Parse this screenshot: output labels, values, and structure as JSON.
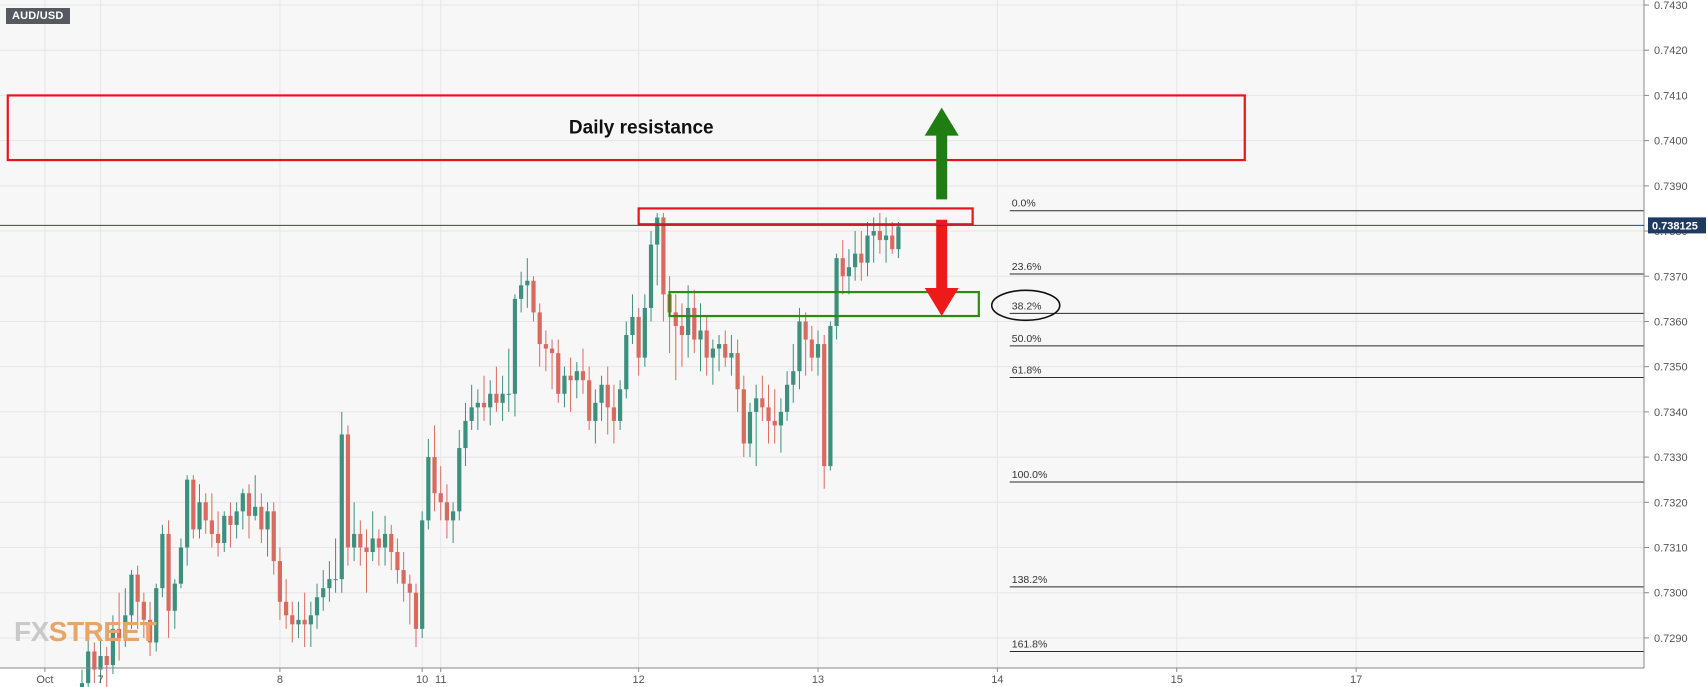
{
  "symbol": "AUD/USD",
  "watermark": {
    "part1": "FX",
    "part2": "STREET"
  },
  "colors": {
    "up": "#3d8f7e",
    "down": "#d96a5f",
    "zone_red": "#e8141b",
    "zone_green": "#2f8a12",
    "arrow_up": "#1f7d13",
    "arrow_down": "#ee1a1a",
    "price_badge": "#1f3a60",
    "grid": "#e6e6e6",
    "background": "#f7f7f7"
  },
  "chart_data": {
    "type": "candlestick",
    "title": "AUD/USD",
    "ylim": [
      0.7286,
      0.743
    ],
    "grid": true,
    "y_ticks": [
      "0.7290",
      "0.7300",
      "0.7310",
      "0.7320",
      "0.7330",
      "0.7340",
      "0.7350",
      "0.7360",
      "0.7370",
      "0.7380",
      "0.7390",
      "0.7400",
      "0.7410",
      "0.7420",
      "0.7430"
    ],
    "x_ticks": [
      {
        "label": "Oct",
        "i": -6
      },
      {
        "label": "7",
        "i": 3
      },
      {
        "label": "8",
        "i": 32
      },
      {
        "label": "10",
        "i": 55
      },
      {
        "label": "11",
        "i": 58
      },
      {
        "label": "12",
        "i": 90
      },
      {
        "label": "13",
        "i": 119
      },
      {
        "label": "14",
        "i": 148
      },
      {
        "label": "15",
        "i": 177
      },
      {
        "label": "17",
        "i": 206
      }
    ],
    "current_price": {
      "label": "0.738125",
      "value": 0.738125
    },
    "candles": [
      [
        0.7278,
        0.7283,
        0.7272,
        0.728
      ],
      [
        0.728,
        0.7292,
        0.7278,
        0.7287
      ],
      [
        0.7287,
        0.7289,
        0.728,
        0.7283
      ],
      [
        0.7283,
        0.729,
        0.728,
        0.7286
      ],
      [
        0.7286,
        0.7288,
        0.7279,
        0.7284
      ],
      [
        0.7284,
        0.7295,
        0.7282,
        0.7292
      ],
      [
        0.7292,
        0.73,
        0.7285,
        0.729
      ],
      [
        0.729,
        0.7301,
        0.7288,
        0.7295
      ],
      [
        0.7295,
        0.7305,
        0.7292,
        0.7304
      ],
      [
        0.7304,
        0.7306,
        0.7292,
        0.7298
      ],
      [
        0.7298,
        0.73,
        0.729,
        0.7294
      ],
      [
        0.7294,
        0.7298,
        0.7286,
        0.7289
      ],
      [
        0.7289,
        0.7302,
        0.7287,
        0.7301
      ],
      [
        0.7301,
        0.7315,
        0.7299,
        0.7313
      ],
      [
        0.7313,
        0.7316,
        0.729,
        0.7296
      ],
      [
        0.7296,
        0.7303,
        0.7292,
        0.7302
      ],
      [
        0.7302,
        0.7312,
        0.7301,
        0.731
      ],
      [
        0.731,
        0.7326,
        0.7306,
        0.7325
      ],
      [
        0.7325,
        0.7326,
        0.7312,
        0.7314
      ],
      [
        0.7314,
        0.7324,
        0.7312,
        0.732
      ],
      [
        0.732,
        0.7322,
        0.7313,
        0.7316
      ],
      [
        0.7316,
        0.7322,
        0.731,
        0.7313
      ],
      [
        0.7313,
        0.7318,
        0.7308,
        0.7311
      ],
      [
        0.7311,
        0.7318,
        0.7309,
        0.7317
      ],
      [
        0.7317,
        0.732,
        0.731,
        0.7315
      ],
      [
        0.7315,
        0.732,
        0.7312,
        0.7318
      ],
      [
        0.7318,
        0.7323,
        0.7314,
        0.7322
      ],
      [
        0.7322,
        0.7324,
        0.7312,
        0.7317
      ],
      [
        0.7317,
        0.7326,
        0.7316,
        0.7319
      ],
      [
        0.7319,
        0.7322,
        0.7311,
        0.7314
      ],
      [
        0.7314,
        0.732,
        0.7308,
        0.7318
      ],
      [
        0.7318,
        0.732,
        0.7304,
        0.7307
      ],
      [
        0.7307,
        0.731,
        0.7294,
        0.7298
      ],
      [
        0.7298,
        0.7303,
        0.7292,
        0.7295
      ],
      [
        0.7295,
        0.7298,
        0.7289,
        0.7293
      ],
      [
        0.7293,
        0.7298,
        0.729,
        0.7294
      ],
      [
        0.7294,
        0.73,
        0.7288,
        0.7293
      ],
      [
        0.7293,
        0.7298,
        0.7288,
        0.7295
      ],
      [
        0.7295,
        0.7302,
        0.7292,
        0.7299
      ],
      [
        0.7299,
        0.7305,
        0.7296,
        0.7301
      ],
      [
        0.7301,
        0.7307,
        0.7298,
        0.7303
      ],
      [
        0.7303,
        0.7312,
        0.73,
        0.7303
      ],
      [
        0.7303,
        0.734,
        0.73,
        0.7335
      ],
      [
        0.7335,
        0.7337,
        0.7306,
        0.731
      ],
      [
        0.731,
        0.732,
        0.7307,
        0.7313
      ],
      [
        0.7313,
        0.7316,
        0.7306,
        0.731
      ],
      [
        0.731,
        0.7314,
        0.73,
        0.7309
      ],
      [
        0.7309,
        0.7318,
        0.7307,
        0.7312
      ],
      [
        0.7312,
        0.7314,
        0.7306,
        0.731
      ],
      [
        0.731,
        0.7317,
        0.7306,
        0.7313
      ],
      [
        0.7313,
        0.7315,
        0.7305,
        0.7309
      ],
      [
        0.7309,
        0.7312,
        0.7302,
        0.7305
      ],
      [
        0.7305,
        0.7309,
        0.7298,
        0.7302
      ],
      [
        0.7302,
        0.7304,
        0.7293,
        0.73
      ],
      [
        0.73,
        0.7302,
        0.7288,
        0.7292
      ],
      [
        0.7292,
        0.7318,
        0.729,
        0.7316
      ],
      [
        0.7316,
        0.7334,
        0.7314,
        0.733
      ],
      [
        0.733,
        0.7337,
        0.7318,
        0.7322
      ],
      [
        0.7322,
        0.7328,
        0.7316,
        0.732
      ],
      [
        0.732,
        0.7324,
        0.7312,
        0.7316
      ],
      [
        0.7316,
        0.732,
        0.7311,
        0.7318
      ],
      [
        0.7318,
        0.7336,
        0.7316,
        0.7332
      ],
      [
        0.7332,
        0.7342,
        0.7328,
        0.7338
      ],
      [
        0.7338,
        0.7346,
        0.7336,
        0.7341
      ],
      [
        0.7341,
        0.7345,
        0.7336,
        0.7342
      ],
      [
        0.7342,
        0.7348,
        0.7338,
        0.7341
      ],
      [
        0.7341,
        0.7347,
        0.7337,
        0.7344
      ],
      [
        0.7344,
        0.735,
        0.734,
        0.7342
      ],
      [
        0.7342,
        0.7348,
        0.7338,
        0.7344
      ],
      [
        0.7344,
        0.7354,
        0.734,
        0.7344
      ],
      [
        0.7344,
        0.7366,
        0.7339,
        0.7365
      ],
      [
        0.7365,
        0.7371,
        0.7362,
        0.7368
      ],
      [
        0.7368,
        0.7374,
        0.7363,
        0.7369
      ],
      [
        0.7369,
        0.737,
        0.736,
        0.7362
      ],
      [
        0.7362,
        0.7364,
        0.735,
        0.7355
      ],
      [
        0.7355,
        0.7358,
        0.7349,
        0.7354
      ],
      [
        0.7354,
        0.7356,
        0.7345,
        0.7353
      ],
      [
        0.7353,
        0.7356,
        0.7342,
        0.7344
      ],
      [
        0.7344,
        0.735,
        0.7341,
        0.7348
      ],
      [
        0.7348,
        0.7352,
        0.734,
        0.7347
      ],
      [
        0.7347,
        0.7351,
        0.7343,
        0.7349
      ],
      [
        0.7349,
        0.7354,
        0.7344,
        0.7347
      ],
      [
        0.7347,
        0.735,
        0.7336,
        0.7338
      ],
      [
        0.7338,
        0.7345,
        0.7333,
        0.7342
      ],
      [
        0.7342,
        0.7348,
        0.7338,
        0.7346
      ],
      [
        0.7346,
        0.735,
        0.7335,
        0.7341
      ],
      [
        0.7341,
        0.7346,
        0.7333,
        0.7338
      ],
      [
        0.7338,
        0.7347,
        0.7336,
        0.7345
      ],
      [
        0.7345,
        0.736,
        0.7343,
        0.7357
      ],
      [
        0.7357,
        0.7366,
        0.7355,
        0.7361
      ],
      [
        0.7361,
        0.7363,
        0.7348,
        0.7352
      ],
      [
        0.7352,
        0.7366,
        0.735,
        0.7363
      ],
      [
        0.7363,
        0.738,
        0.736,
        0.7377
      ],
      [
        0.7377,
        0.7384,
        0.7368,
        0.7383
      ],
      [
        0.7383,
        0.7384,
        0.736,
        0.7366
      ],
      [
        0.7366,
        0.737,
        0.7353,
        0.7362
      ],
      [
        0.7362,
        0.7366,
        0.7347,
        0.7359
      ],
      [
        0.7359,
        0.7364,
        0.735,
        0.7357
      ],
      [
        0.7357,
        0.7368,
        0.7352,
        0.7363
      ],
      [
        0.7363,
        0.7367,
        0.7353,
        0.7356
      ],
      [
        0.7356,
        0.7364,
        0.7349,
        0.7358
      ],
      [
        0.7358,
        0.7361,
        0.7348,
        0.7352
      ],
      [
        0.7352,
        0.7356,
        0.7346,
        0.7354
      ],
      [
        0.7354,
        0.7357,
        0.7349,
        0.7355
      ],
      [
        0.7355,
        0.7358,
        0.735,
        0.7352
      ],
      [
        0.7352,
        0.7357,
        0.7348,
        0.7353
      ],
      [
        0.7353,
        0.7356,
        0.734,
        0.7345
      ],
      [
        0.7345,
        0.7348,
        0.733,
        0.7333
      ],
      [
        0.7333,
        0.7342,
        0.733,
        0.734
      ],
      [
        0.734,
        0.7346,
        0.7328,
        0.7343
      ],
      [
        0.7343,
        0.7348,
        0.7338,
        0.7341
      ],
      [
        0.7341,
        0.7346,
        0.7333,
        0.7338
      ],
      [
        0.7338,
        0.7345,
        0.7333,
        0.7337
      ],
      [
        0.7337,
        0.7343,
        0.7331,
        0.734
      ],
      [
        0.734,
        0.7349,
        0.7338,
        0.7346
      ],
      [
        0.7346,
        0.7355,
        0.7342,
        0.7349
      ],
      [
        0.7349,
        0.7363,
        0.7345,
        0.736
      ],
      [
        0.736,
        0.7362,
        0.7348,
        0.7356
      ],
      [
        0.7356,
        0.7359,
        0.7349,
        0.7352
      ],
      [
        0.7352,
        0.7358,
        0.7348,
        0.7355
      ],
      [
        0.7355,
        0.7357,
        0.7323,
        0.7328
      ],
      [
        0.7328,
        0.736,
        0.7327,
        0.7359
      ],
      [
        0.7359,
        0.7375,
        0.7356,
        0.7374
      ],
      [
        0.7374,
        0.7378,
        0.7366,
        0.737
      ],
      [
        0.737,
        0.7376,
        0.7366,
        0.7372
      ],
      [
        0.7372,
        0.738,
        0.7369,
        0.7375
      ],
      [
        0.7375,
        0.738,
        0.7369,
        0.7373
      ],
      [
        0.7373,
        0.7382,
        0.737,
        0.7379
      ],
      [
        0.7379,
        0.7383,
        0.7373,
        0.738
      ],
      [
        0.738,
        0.7384,
        0.7375,
        0.7378
      ],
      [
        0.7378,
        0.7383,
        0.7373,
        0.7379
      ],
      [
        0.7379,
        0.7382,
        0.7375,
        0.7376
      ],
      [
        0.7376,
        0.7382,
        0.7374,
        0.7381
      ]
    ],
    "annotations": [
      {
        "kind": "zone",
        "role": "daily-resistance",
        "color": "red",
        "label": "Daily resistance",
        "y_low": 0.73957,
        "y_high": 0.741,
        "i_start": -12,
        "i_end": 188
      },
      {
        "kind": "zone",
        "role": "top-zone",
        "color": "red",
        "y_low": 0.73815,
        "y_high": 0.7385,
        "i_start": 90,
        "i_end": 144
      },
      {
        "kind": "zone",
        "role": "support-zone",
        "color": "green",
        "y_low": 0.73612,
        "y_high": 0.73665,
        "i_start": 95,
        "i_end": 145
      },
      {
        "kind": "arrow",
        "direction": "up",
        "color": "green",
        "i": 139,
        "y_from": 0.7387,
        "y_to": 0.74073
      },
      {
        "kind": "arrow",
        "direction": "down",
        "color": "red",
        "i": 139,
        "y_from": 0.73825,
        "y_to": 0.73612
      }
    ],
    "fibonacci": {
      "i_start": 150,
      "levels": [
        {
          "label": "0.0%",
          "value": 0.73845
        },
        {
          "label": "23.6%",
          "value": 0.73705
        },
        {
          "label": "38.2%",
          "value": 0.73618
        },
        {
          "label": "50.0%",
          "value": 0.73546
        },
        {
          "label": "61.8%",
          "value": 0.73476
        },
        {
          "label": "100.0%",
          "value": 0.73245
        },
        {
          "label": "138.2%",
          "value": 0.73013
        },
        {
          "label": "161.8%",
          "value": 0.7287
        }
      ],
      "circled_label": "38.2%"
    }
  }
}
